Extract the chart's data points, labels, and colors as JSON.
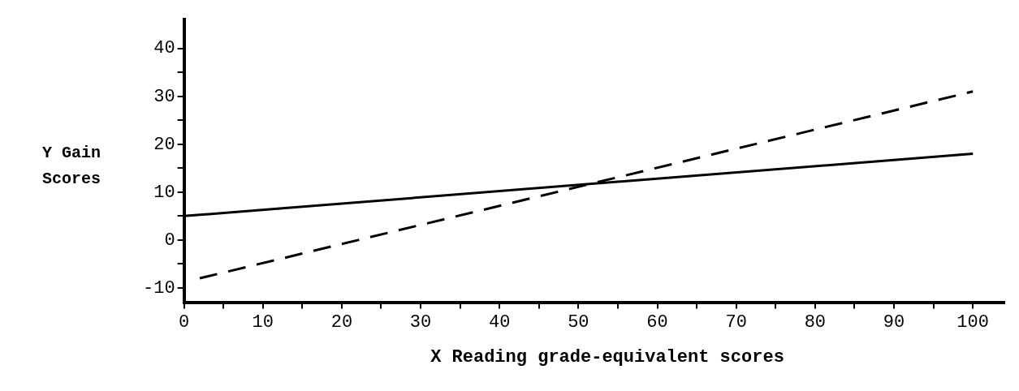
{
  "chart_data": {
    "type": "line",
    "xlabel": "X Reading grade-equivalent scores",
    "ylabel": "Y Gain Scores",
    "series": [
      {
        "color": "#000000",
        "line_style": "solid",
        "x": [
          0,
          100
        ],
        "values": [
          5,
          18
        ]
      },
      {
        "color": "#000000",
        "line_style": "dashed",
        "x": [
          2,
          100
        ],
        "values": [
          -8,
          31
        ]
      }
    ],
    "xlim": [
      0,
      104
    ],
    "ylim": [
      -13,
      46
    ],
    "xticks": [
      0,
      {
        "value": 5,
        "label": null
      },
      10,
      {
        "value": 15,
        "label": null
      },
      20,
      {
        "value": 25,
        "label": null
      },
      30,
      {
        "value": 35,
        "label": null
      },
      40,
      {
        "value": 45,
        "label": null
      },
      50,
      {
        "value": 55,
        "label": null
      },
      60,
      {
        "value": 65,
        "label": null
      },
      70,
      {
        "value": 75,
        "label": null
      },
      80,
      {
        "value": 85,
        "label": null
      },
      90,
      {
        "value": 95,
        "label": null
      },
      100
    ],
    "yticks": [
      -10,
      {
        "value": -5,
        "label": null
      },
      0,
      {
        "value": 5,
        "label": null
      },
      10,
      {
        "value": 15,
        "label": null
      },
      20,
      {
        "value": 25,
        "label": null
      },
      30,
      {
        "value": 35,
        "label": null
      },
      40
    ],
    "grid": false,
    "legend": false,
    "marker": "none"
  }
}
